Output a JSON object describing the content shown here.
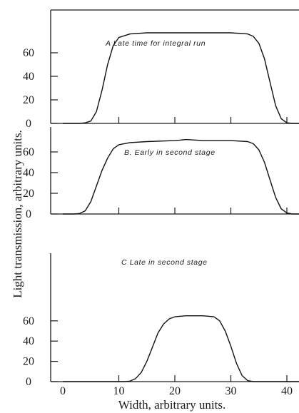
{
  "chart_data": {
    "type": "line",
    "xlabel": "Width, arbitrary units.",
    "ylabel": "Light transmission, arbitrary units.",
    "xlim": [
      0,
      43
    ],
    "x_ticks": [
      "0",
      "10",
      "20",
      "30",
      "40"
    ],
    "y_ticks": [
      "0",
      "20",
      "40",
      "60"
    ],
    "ylim": [
      0,
      80
    ],
    "panels": [
      {
        "annotation": "A  Late time for integral run",
        "series": [
          {
            "x": [
              0,
              3,
              4,
              5,
              6,
              7,
              8,
              9,
              10,
              12,
              15,
              20,
              25,
              30,
              33,
              34,
              35,
              36,
              37,
              38,
              39,
              40,
              41,
              43
            ],
            "y": [
              0,
              0,
              0.5,
              2,
              10,
              28,
              50,
              66,
              73,
              76,
              77,
              77,
              77,
              77,
              76,
              74,
              68,
              55,
              35,
              15,
              4,
              0.5,
              0,
              0
            ]
          }
        ]
      },
      {
        "annotation": "B.  Early in second stage",
        "series": [
          {
            "x": [
              0,
              2,
              3,
              4,
              5,
              6,
              7,
              8,
              9,
              10,
              12,
              15,
              20,
              22,
              25,
              30,
              33,
              34,
              35,
              36,
              37,
              38,
              39,
              40,
              41,
              43
            ],
            "y": [
              0,
              0,
              0.5,
              3,
              12,
              27,
              42,
              54,
              63,
              67,
              69,
              70,
              71,
              72,
              71,
              71,
              70,
              68,
              62,
              50,
              33,
              16,
              5,
              1,
              0,
              0
            ]
          }
        ]
      },
      {
        "annotation": "C  Late in second stage",
        "series": [
          {
            "x": [
              0,
              11,
              12,
              13,
              14,
              15,
              16,
              17,
              18,
              19,
              20,
              22,
              25,
              27,
              28,
              29,
              30,
              31,
              32,
              33,
              34,
              36,
              43
            ],
            "y": [
              0,
              0,
              0.5,
              3,
              9,
              20,
              34,
              48,
              57,
              62,
              64,
              65,
              65,
              64,
              60,
              50,
              35,
              18,
              6,
              1,
              0,
              0,
              0
            ]
          }
        ]
      }
    ]
  }
}
